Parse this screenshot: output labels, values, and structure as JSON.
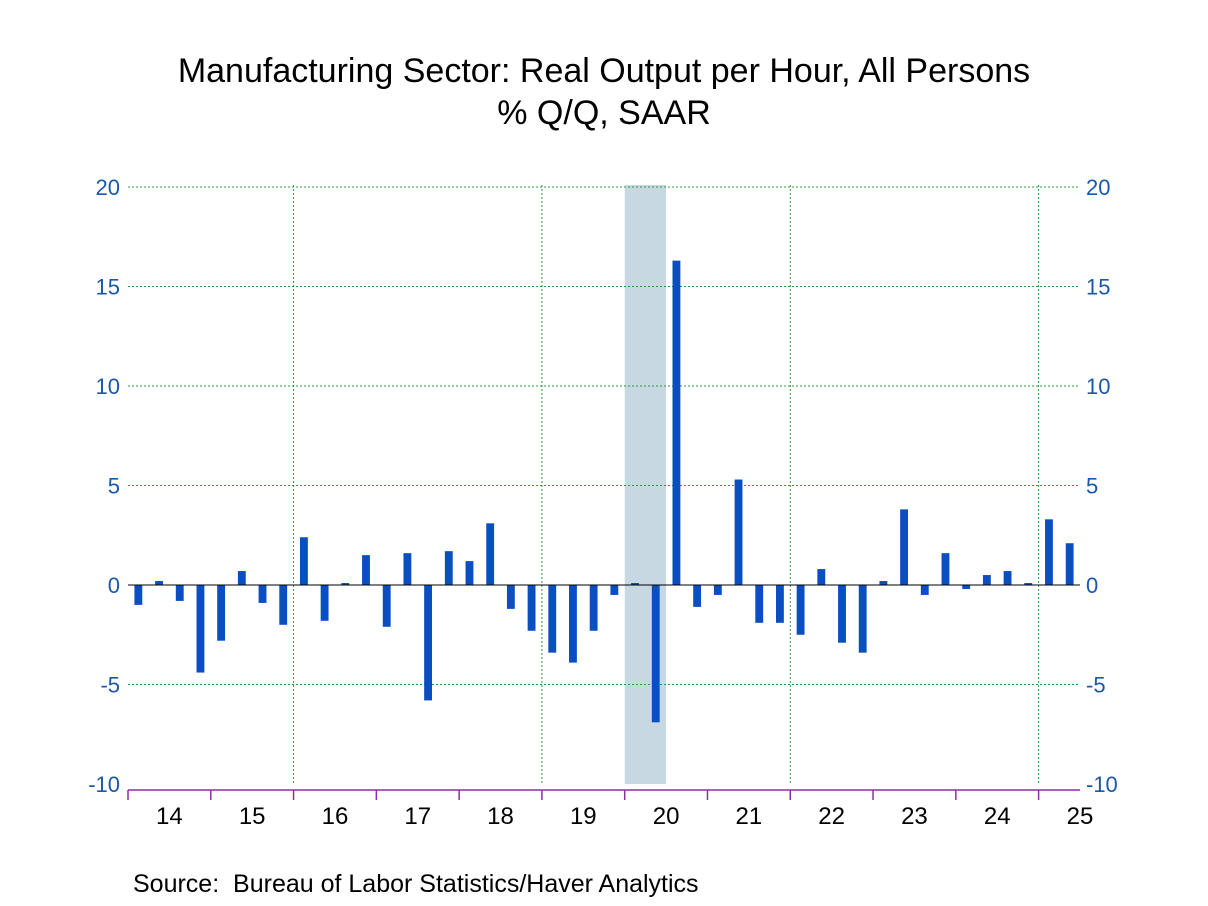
{
  "chart_data": {
    "type": "bar",
    "title": "Manufacturing Sector: Real Output per Hour, All Persons",
    "subtitle": "% Q/Q, SAAR",
    "xlabel": "",
    "ylabel": "",
    "ylim": [
      -10,
      20
    ],
    "y_ticks": [
      "20",
      "15",
      "10",
      "5",
      "0",
      "-5",
      "-10"
    ],
    "y_tick_values": [
      20,
      15,
      10,
      5,
      0,
      -5,
      -10
    ],
    "x_tick_labels": [
      "14",
      "15",
      "16",
      "17",
      "18",
      "19",
      "20",
      "21",
      "22",
      "23",
      "24",
      "25"
    ],
    "grid": true,
    "shaded_period": {
      "label": "recession",
      "start": "2020-Q1",
      "end": "2020-Q2"
    },
    "bar_color": "#0a4fc2",
    "axis_label_color": "#1b58a8",
    "shade_color": "#c7d8e2",
    "grid_color": "#2e9a3e",
    "axis_color": "#8c2fa3",
    "categories": [
      "2014-Q1",
      "2014-Q2",
      "2014-Q3",
      "2014-Q4",
      "2015-Q1",
      "2015-Q2",
      "2015-Q3",
      "2015-Q4",
      "2016-Q1",
      "2016-Q2",
      "2016-Q3",
      "2016-Q4",
      "2017-Q1",
      "2017-Q2",
      "2017-Q3",
      "2017-Q4",
      "2018-Q1",
      "2018-Q2",
      "2018-Q3",
      "2018-Q4",
      "2019-Q1",
      "2019-Q2",
      "2019-Q3",
      "2019-Q4",
      "2020-Q1",
      "2020-Q2",
      "2020-Q3",
      "2020-Q4",
      "2021-Q1",
      "2021-Q2",
      "2021-Q3",
      "2021-Q4",
      "2022-Q1",
      "2022-Q2",
      "2022-Q3",
      "2022-Q4",
      "2023-Q1",
      "2023-Q2",
      "2023-Q3",
      "2023-Q4",
      "2024-Q1",
      "2024-Q2",
      "2024-Q3",
      "2024-Q4",
      "2025-Q1",
      "2025-Q2"
    ],
    "values": [
      -1.0,
      0.2,
      -0.8,
      -4.4,
      -2.8,
      0.7,
      -0.9,
      -2.0,
      2.4,
      -1.8,
      0.1,
      1.5,
      -2.1,
      1.6,
      -5.8,
      1.7,
      1.2,
      3.1,
      -1.2,
      -2.3,
      -3.4,
      -3.9,
      -2.3,
      -0.5,
      0.1,
      -6.9,
      16.3,
      -1.1,
      -0.5,
      5.3,
      -1.9,
      -1.9,
      -2.5,
      0.8,
      -2.9,
      -3.4,
      0.2,
      3.8,
      -0.5,
      1.6,
      -0.2,
      0.5,
      0.7,
      0.1,
      3.3,
      2.1
    ]
  },
  "source": "Source:  Bureau of Labor Statistics/Haver Analytics"
}
